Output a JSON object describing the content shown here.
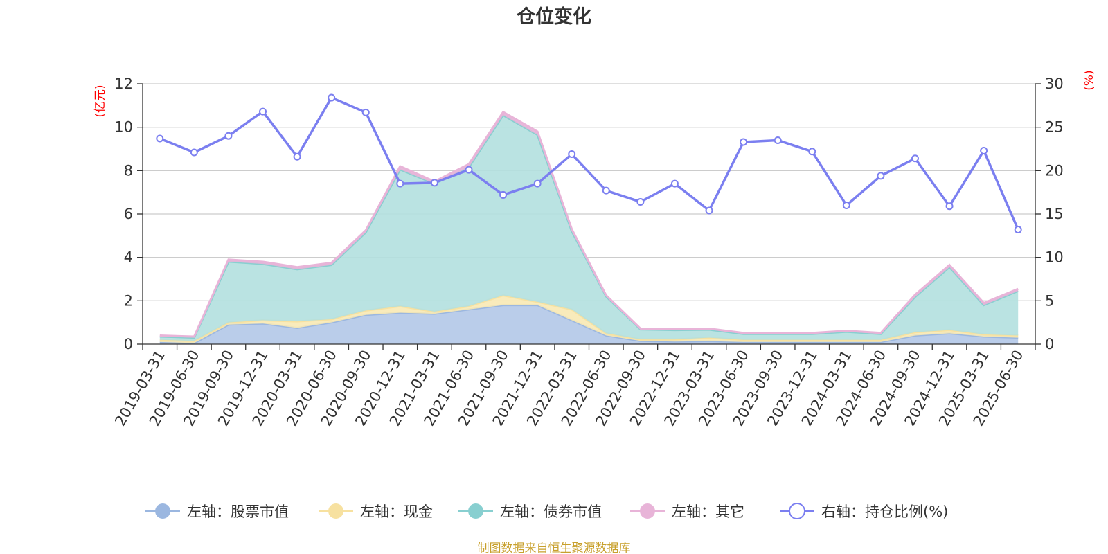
{
  "chart_data": {
    "type": "area",
    "title": "仓位变化",
    "y_left_unit": "(亿元)",
    "y_right_unit": "(%)",
    "y_left_range": [
      0,
      12
    ],
    "y_left_ticks": [
      0,
      2,
      4,
      6,
      8,
      10,
      12
    ],
    "y_right_range": [
      0,
      30
    ],
    "y_right_ticks": [
      0,
      5,
      10,
      15,
      20,
      25,
      30
    ],
    "grid": true,
    "legend_position": "bottom",
    "categories": [
      "2019-03-31",
      "2019-06-30",
      "2019-09-30",
      "2019-12-31",
      "2020-03-31",
      "2020-06-30",
      "2020-09-30",
      "2020-12-31",
      "2021-03-31",
      "2021-06-30",
      "2021-09-30",
      "2021-12-31",
      "2022-03-31",
      "2022-06-30",
      "2022-09-30",
      "2022-12-31",
      "2023-03-31",
      "2023-06-30",
      "2023-09-30",
      "2023-12-31",
      "2024-03-31",
      "2024-06-30",
      "2024-09-30",
      "2024-12-31",
      "2025-03-31",
      "2025-06-30"
    ],
    "stacked_series": [
      {
        "name": "左轴：股票市值",
        "axis": "left",
        "color": "#9bb7e0",
        "fill": "#b3c8e8",
        "values": [
          0.1,
          0.05,
          0.9,
          0.95,
          0.75,
          1.0,
          1.35,
          1.45,
          1.4,
          1.6,
          1.8,
          1.8,
          1.1,
          0.4,
          0.15,
          0.12,
          0.14,
          0.1,
          0.1,
          0.1,
          0.1,
          0.1,
          0.4,
          0.5,
          0.35,
          0.3
        ]
      },
      {
        "name": "左轴：现金",
        "axis": "left",
        "color": "#f7e1a0",
        "fill": "#f8e9b4",
        "values": [
          0.1,
          0.1,
          0.1,
          0.15,
          0.3,
          0.15,
          0.2,
          0.3,
          0.1,
          0.15,
          0.45,
          0.15,
          0.5,
          0.1,
          0.07,
          0.1,
          0.16,
          0.1,
          0.1,
          0.1,
          0.1,
          0.1,
          0.15,
          0.15,
          0.1,
          0.1
        ]
      },
      {
        "name": "左轴：债券市值",
        "axis": "left",
        "color": "#88cfd0",
        "fill": "#b3e0df",
        "values": [
          0.15,
          0.15,
          2.8,
          2.6,
          2.4,
          2.5,
          3.6,
          6.3,
          5.9,
          6.4,
          8.3,
          7.7,
          3.6,
          1.7,
          0.46,
          0.43,
          0.37,
          0.27,
          0.27,
          0.27,
          0.37,
          0.27,
          1.63,
          2.9,
          1.35,
          2.05
        ]
      },
      {
        "name": "左轴：其它",
        "axis": "left",
        "color": "#e8b4d8",
        "fill": "#e8b4d8",
        "values": [
          0.05,
          0.05,
          0.1,
          0.1,
          0.1,
          0.1,
          0.1,
          0.15,
          0.1,
          0.15,
          0.15,
          0.15,
          0.1,
          0.05,
          0.04,
          0.05,
          0.05,
          0.05,
          0.05,
          0.05,
          0.05,
          0.05,
          0.1,
          0.1,
          0.1,
          0.1
        ]
      }
    ],
    "line_series": {
      "name": "右轴：持仓比例(%)",
      "axis": "right",
      "color": "#7b7ff0",
      "values": [
        23.7,
        22.1,
        24.0,
        26.8,
        21.6,
        28.4,
        26.7,
        18.5,
        18.6,
        20.1,
        17.2,
        18.5,
        21.9,
        17.7,
        16.4,
        18.5,
        15.4,
        23.3,
        23.5,
        22.2,
        16.0,
        19.4,
        21.4,
        15.9,
        22.3,
        13.2
      ]
    }
  },
  "legend": {
    "items": [
      {
        "label": "左轴：股票市值",
        "color": "#9bb7e0",
        "marker": "filled-circle"
      },
      {
        "label": "左轴：现金",
        "color": "#f7e1a0",
        "marker": "filled-circle"
      },
      {
        "label": "左轴：债券市值",
        "color": "#88cfd0",
        "marker": "filled-circle"
      },
      {
        "label": "左轴：其它",
        "color": "#e8b4d8",
        "marker": "filled-circle"
      },
      {
        "label": "右轴：持仓比例(%)",
        "color": "#7b7ff0",
        "marker": "hollow-circle"
      }
    ]
  },
  "footer": {
    "source": "制图数据来自恒生聚源数据库"
  }
}
